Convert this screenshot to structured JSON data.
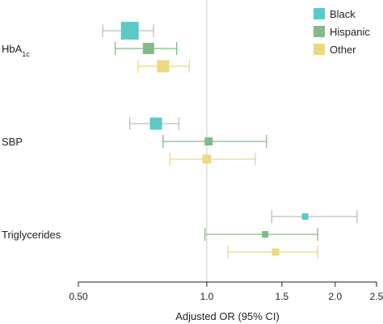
{
  "chart_data": {
    "type": "forest",
    "xlabel": "Adjusted OR (95% CI)",
    "x_scale": "log",
    "xlim": [
      0.5,
      2.5
    ],
    "xticks": [
      {
        "value": 0.5,
        "label": "0.50"
      },
      {
        "value": 1.0,
        "label": "1.0"
      },
      {
        "value": 1.5,
        "label": "1.5"
      },
      {
        "value": 2.0,
        "label": "2.0"
      },
      {
        "value": 2.5,
        "label": "2.5"
      }
    ],
    "reference_line": 1.0,
    "groups": [
      {
        "label": "HbA",
        "sub": "1c"
      },
      {
        "label": "SBP",
        "sub": ""
      },
      {
        "label": "Triglycerides",
        "sub": ""
      }
    ],
    "series": [
      {
        "name": "Black",
        "color": "#5ec8c6",
        "points": [
          {
            "or": 0.66,
            "lo": 0.57,
            "hi": 0.75,
            "weight": 22
          },
          {
            "or": 0.76,
            "lo": 0.66,
            "hi": 0.86,
            "weight": 15
          },
          {
            "or": 1.7,
            "lo": 1.42,
            "hi": 2.25,
            "weight": 8
          }
        ]
      },
      {
        "name": "Hispanic",
        "color": "#86b98a",
        "points": [
          {
            "or": 0.73,
            "lo": 0.61,
            "hi": 0.85,
            "weight": 14
          },
          {
            "or": 1.01,
            "lo": 0.79,
            "hi": 1.38,
            "weight": 10
          },
          {
            "or": 1.37,
            "lo": 0.99,
            "hi": 1.82,
            "weight": 8
          }
        ]
      },
      {
        "name": "Other",
        "color": "#ebd882",
        "points": [
          {
            "or": 0.79,
            "lo": 0.69,
            "hi": 0.91,
            "weight": 15
          },
          {
            "or": 1.0,
            "lo": 0.82,
            "hi": 1.3,
            "weight": 11
          },
          {
            "or": 1.45,
            "lo": 1.12,
            "hi": 1.82,
            "weight": 9
          }
        ]
      }
    ],
    "legend_position": "top-right"
  }
}
